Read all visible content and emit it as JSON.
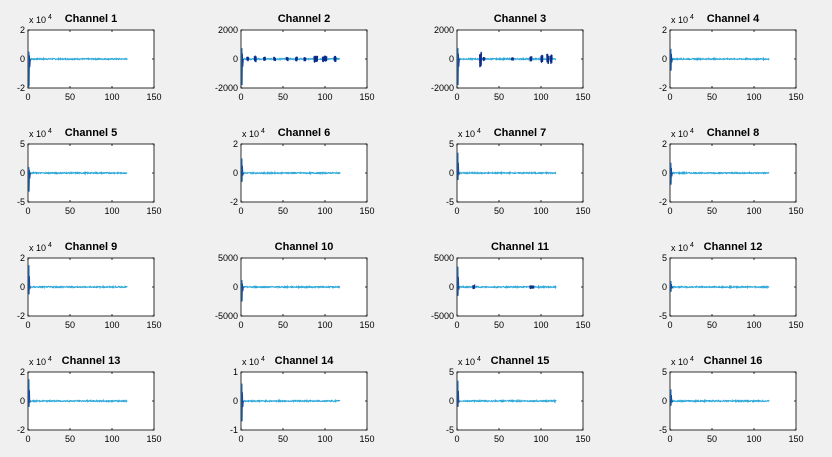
{
  "figure": {
    "background": "#f0f0f0"
  },
  "colors": {
    "signal_light": "#2ea8d8",
    "signal_dark": "#0b2a8a",
    "axis": "#000000",
    "plot_bg": "#ffffff"
  },
  "chart_data": [
    {
      "type": "line",
      "title": "Channel 1",
      "xlim": [
        0,
        150
      ],
      "ylim": [
        -2,
        2
      ],
      "exponent_label": "x 10",
      "exponent_power": "4",
      "xticks": [
        0,
        50,
        100,
        150
      ],
      "yticks": [
        -2,
        0,
        2
      ],
      "signal_end": 118,
      "spike_up": 0.5,
      "spike_down": -1.9,
      "bursts": []
    },
    {
      "type": "line",
      "title": "Channel 2",
      "xlim": [
        0,
        150
      ],
      "ylim": [
        -2000,
        2000
      ],
      "exponent_label": "",
      "exponent_power": "",
      "xticks": [
        0,
        50,
        100,
        150
      ],
      "yticks": [
        -2000,
        0,
        2000
      ],
      "signal_end": 118,
      "spike_up": 750,
      "spike_down": -1800,
      "bursts": [
        {
          "x": 8,
          "amp": 180
        },
        {
          "x": 17,
          "amp": 250
        },
        {
          "x": 28,
          "amp": 200
        },
        {
          "x": 40,
          "amp": 150
        },
        {
          "x": 55,
          "amp": 160
        },
        {
          "x": 66,
          "amp": 180
        },
        {
          "x": 76,
          "amp": 160
        },
        {
          "x": 88,
          "amp": 280
        },
        {
          "x": 90,
          "amp": 240
        },
        {
          "x": 98,
          "amp": 230
        },
        {
          "x": 101,
          "amp": 250
        },
        {
          "x": 112,
          "amp": 220
        }
      ]
    },
    {
      "type": "line",
      "title": "Channel 3",
      "xlim": [
        0,
        150
      ],
      "ylim": [
        -2000,
        2000
      ],
      "exponent_label": "",
      "exponent_power": "",
      "xticks": [
        0,
        50,
        100,
        150
      ],
      "yticks": [
        -2000,
        0,
        2000
      ],
      "signal_end": 118,
      "spike_up": 750,
      "spike_down": -1800,
      "bursts": [
        {
          "x": 28,
          "amp": 600
        },
        {
          "x": 32,
          "amp": 150
        },
        {
          "x": 66,
          "amp": 120
        },
        {
          "x": 88,
          "amp": 200
        },
        {
          "x": 101,
          "amp": 300
        },
        {
          "x": 108,
          "amp": 400
        },
        {
          "x": 112,
          "amp": 350
        }
      ]
    },
    {
      "type": "line",
      "title": "Channel 4",
      "xlim": [
        0,
        150
      ],
      "ylim": [
        -2,
        2
      ],
      "exponent_label": "x 10",
      "exponent_power": "4",
      "xticks": [
        0,
        50,
        100,
        150
      ],
      "yticks": [
        -2,
        0,
        2
      ],
      "signal_end": 118,
      "spike_up": 0.7,
      "spike_down": -0.8,
      "bursts": []
    },
    {
      "type": "line",
      "title": "Channel 5",
      "xlim": [
        0,
        150
      ],
      "ylim": [
        -5,
        5
      ],
      "exponent_label": "x 10",
      "exponent_power": "4",
      "xticks": [
        0,
        50,
        100,
        150
      ],
      "yticks": [
        -5,
        0,
        5
      ],
      "signal_end": 118,
      "spike_up": 1.0,
      "spike_down": -3.2,
      "bursts": []
    },
    {
      "type": "line",
      "title": "Channel 6",
      "xlim": [
        0,
        150
      ],
      "ylim": [
        -2,
        2
      ],
      "exponent_label": "x 10",
      "exponent_power": "4",
      "xticks": [
        0,
        50,
        100,
        150
      ],
      "yticks": [
        -2,
        0,
        2
      ],
      "signal_end": 118,
      "spike_up": 1.0,
      "spike_down": -0.6,
      "bursts": []
    },
    {
      "type": "line",
      "title": "Channel 7",
      "xlim": [
        0,
        150
      ],
      "ylim": [
        -5,
        5
      ],
      "exponent_label": "x 10",
      "exponent_power": "4",
      "xticks": [
        0,
        50,
        100,
        150
      ],
      "yticks": [
        -5,
        0,
        5
      ],
      "signal_end": 118,
      "spike_up": 3.5,
      "spike_down": -1.2,
      "bursts": []
    },
    {
      "type": "line",
      "title": "Channel 8",
      "xlim": [
        0,
        150
      ],
      "ylim": [
        -2,
        2
      ],
      "exponent_label": "x 10",
      "exponent_power": "4",
      "xticks": [
        0,
        50,
        100,
        150
      ],
      "yticks": [
        -2,
        0,
        2
      ],
      "signal_end": 118,
      "spike_up": 0.7,
      "spike_down": -0.8,
      "bursts": []
    },
    {
      "type": "line",
      "title": "Channel 9",
      "xlim": [
        0,
        150
      ],
      "ylim": [
        -2,
        2
      ],
      "exponent_label": "x 10",
      "exponent_power": "4",
      "xticks": [
        0,
        50,
        100,
        150
      ],
      "yticks": [
        -2,
        0,
        2
      ],
      "signal_end": 118,
      "spike_up": 1.5,
      "spike_down": -0.5,
      "bursts": []
    },
    {
      "type": "line",
      "title": "Channel 10",
      "xlim": [
        0,
        150
      ],
      "ylim": [
        -5000,
        5000
      ],
      "exponent_label": "",
      "exponent_power": "",
      "xticks": [
        0,
        50,
        100,
        150
      ],
      "yticks": [
        -5000,
        0,
        5000
      ],
      "signal_end": 118,
      "spike_up": 1200,
      "spike_down": -2500,
      "bursts": []
    },
    {
      "type": "line",
      "title": "Channel 11",
      "xlim": [
        0,
        150
      ],
      "ylim": [
        -5000,
        5000
      ],
      "exponent_label": "",
      "exponent_power": "",
      "xticks": [
        0,
        50,
        100,
        150
      ],
      "yticks": [
        -5000,
        0,
        5000
      ],
      "signal_end": 118,
      "spike_up": 3500,
      "spike_down": -1500,
      "bursts": [
        {
          "x": 20,
          "amp": 450
        },
        {
          "x": 88,
          "amp": 350
        },
        {
          "x": 90,
          "amp": 300
        }
      ]
    },
    {
      "type": "line",
      "title": "Channel 12",
      "xlim": [
        0,
        150
      ],
      "ylim": [
        -5,
        5
      ],
      "exponent_label": "x 10",
      "exponent_power": "4",
      "xticks": [
        0,
        50,
        100,
        150
      ],
      "yticks": [
        -5,
        0,
        5
      ],
      "signal_end": 118,
      "spike_up": 1.0,
      "spike_down": -0.8,
      "bursts": []
    },
    {
      "type": "line",
      "title": "Channel 13",
      "xlim": [
        0,
        150
      ],
      "ylim": [
        -2,
        2
      ],
      "exponent_label": "x 10",
      "exponent_power": "4",
      "xticks": [
        0,
        50,
        100,
        150
      ],
      "yticks": [
        -2,
        0,
        2
      ],
      "signal_end": 118,
      "spike_up": 1.5,
      "spike_down": -0.4,
      "bursts": []
    },
    {
      "type": "line",
      "title": "Channel 14",
      "xlim": [
        0,
        150
      ],
      "ylim": [
        -1,
        1
      ],
      "exponent_label": "x 10",
      "exponent_power": "4",
      "xticks": [
        0,
        50,
        100,
        150
      ],
      "yticks": [
        -1,
        0,
        1
      ],
      "signal_end": 118,
      "spike_up": 0.6,
      "spike_down": -0.7,
      "bursts": []
    },
    {
      "type": "line",
      "title": "Channel 15",
      "xlim": [
        0,
        150
      ],
      "ylim": [
        -5,
        5
      ],
      "exponent_label": "x 10",
      "exponent_power": "4",
      "xticks": [
        0,
        50,
        100,
        150
      ],
      "yticks": [
        -5,
        0,
        5
      ],
      "signal_end": 118,
      "spike_up": 3.5,
      "spike_down": -1.0,
      "bursts": []
    },
    {
      "type": "line",
      "title": "Channel 16",
      "xlim": [
        0,
        150
      ],
      "ylim": [
        -5,
        5
      ],
      "exponent_label": "x 10",
      "exponent_power": "4",
      "xticks": [
        0,
        50,
        100,
        150
      ],
      "yticks": [
        -5,
        0,
        5
      ],
      "signal_end": 118,
      "spike_up": 2.0,
      "spike_down": -0.8,
      "bursts": []
    }
  ]
}
